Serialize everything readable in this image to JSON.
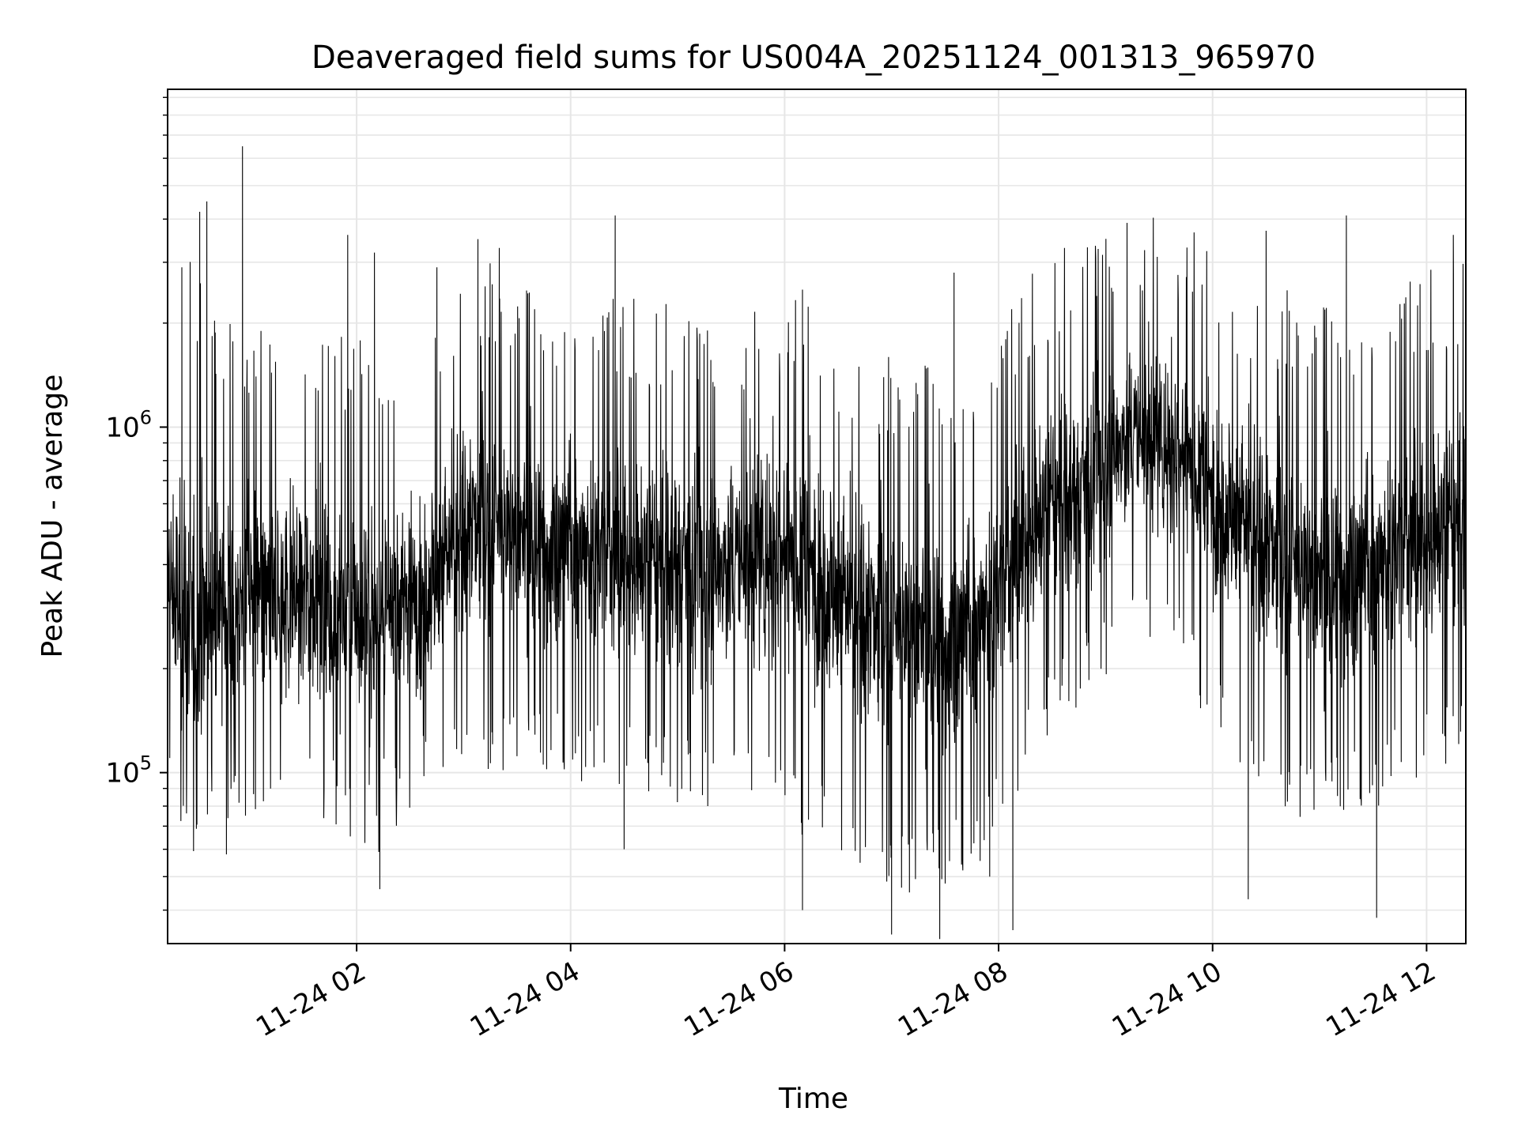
{
  "chart_data": {
    "type": "line",
    "title": "Deaveraged field sums for US004A_20251124_001313_965970",
    "xlabel": "Time",
    "ylabel": "Peak ADU - average",
    "y_scale": "log",
    "ylim": [
      32000,
      9500000
    ],
    "xlim": [
      "2025-11-24 00:14",
      "2025-11-24 12:22"
    ],
    "x_ticks": [
      {
        "label": "11-24 02",
        "time": "2025-11-24 02:00"
      },
      {
        "label": "11-24 04",
        "time": "2025-11-24 04:00"
      },
      {
        "label": "11-24 06",
        "time": "2025-11-24 06:00"
      },
      {
        "label": "11-24 08",
        "time": "2025-11-24 08:00"
      },
      {
        "label": "11-24 10",
        "time": "2025-11-24 10:00"
      },
      {
        "label": "11-24 12",
        "time": "2025-11-24 12:00"
      }
    ],
    "y_ticks": [
      {
        "base": "10",
        "exp": "5",
        "value": 100000
      },
      {
        "base": "10",
        "exp": "6",
        "value": 1000000
      }
    ],
    "grid": true,
    "line_color": "#000000",
    "grid_color": "#e6e6e6",
    "series": [
      {
        "name": "",
        "x": [
          "2025-11-24 00:14",
          "2025-11-24 00:20",
          "2025-11-24 00:30",
          "2025-11-24 00:40",
          "2025-11-24 00:50",
          "2025-11-24 01:00",
          "2025-11-24 01:15",
          "2025-11-24 01:30",
          "2025-11-24 01:45",
          "2025-11-24 02:00",
          "2025-11-24 02:15",
          "2025-11-24 02:30",
          "2025-11-24 02:45",
          "2025-11-24 03:00",
          "2025-11-24 03:15",
          "2025-11-24 03:30",
          "2025-11-24 03:45",
          "2025-11-24 04:00",
          "2025-11-24 04:15",
          "2025-11-24 04:30",
          "2025-11-24 04:45",
          "2025-11-24 05:00",
          "2025-11-24 05:15",
          "2025-11-24 05:30",
          "2025-11-24 05:45",
          "2025-11-24 06:00",
          "2025-11-24 06:15",
          "2025-11-24 06:30",
          "2025-11-24 06:45",
          "2025-11-24 07:00",
          "2025-11-24 07:15",
          "2025-11-24 07:30",
          "2025-11-24 07:45",
          "2025-11-24 08:00",
          "2025-11-24 08:15",
          "2025-11-24 08:30",
          "2025-11-24 08:45",
          "2025-11-24 09:00",
          "2025-11-24 09:15",
          "2025-11-24 09:30",
          "2025-11-24 09:45",
          "2025-11-24 10:00",
          "2025-11-24 10:15",
          "2025-11-24 10:30",
          "2025-11-24 10:45",
          "2025-11-24 11:00",
          "2025-11-24 11:15",
          "2025-11-24 11:30",
          "2025-11-24 11:45",
          "2025-11-24 12:00",
          "2025-11-24 12:15",
          "2025-11-24 12:22"
        ],
        "y": [
          350000,
          300000,
          250000,
          320000,
          280000,
          330000,
          300000,
          340000,
          310000,
          280000,
          260000,
          330000,
          380000,
          500000,
          520000,
          480000,
          450000,
          470000,
          430000,
          420000,
          400000,
          410000,
          380000,
          400000,
          420000,
          450000,
          400000,
          330000,
          280000,
          260000,
          250000,
          240000,
          260000,
          330000,
          480000,
          600000,
          650000,
          800000,
          950000,
          900000,
          850000,
          650000,
          550000,
          450000,
          400000,
          350000,
          380000,
          400000,
          450000,
          480000,
          520000,
          500000
        ],
        "range_low": [
          130000,
          110000,
          90000,
          100000,
          110000,
          120000,
          120000,
          115000,
          110000,
          100000,
          90000,
          120000,
          150000,
          170000,
          160000,
          160000,
          150000,
          150000,
          140000,
          140000,
          130000,
          130000,
          125000,
          125000,
          120000,
          110000,
          100000,
          90000,
          80000,
          75000,
          70000,
          70000,
          80000,
          100000,
          150000,
          200000,
          250000,
          300000,
          350000,
          330000,
          300000,
          200000,
          160000,
          140000,
          120000,
          110000,
          115000,
          120000,
          140000,
          150000,
          160000,
          160000
        ],
        "range_high": [
          1400000,
          1600000,
          1800000,
          1300000,
          1200000,
          1200000,
          1100000,
          1200000,
          1150000,
          1100000,
          1000000,
          1200000,
          1400000,
          1700000,
          1700000,
          1500000,
          1400000,
          1500000,
          1400000,
          1350000,
          1300000,
          1300000,
          1250000,
          1250000,
          1300000,
          1400000,
          1300000,
          1100000,
          1000000,
          900000,
          900000,
          850000,
          900000,
          1100000,
          1500000,
          1800000,
          2000000,
          2300000,
          2500000,
          2400000,
          2300000,
          1800000,
          1600000,
          1500000,
          1400000,
          1300000,
          1350000,
          1400000,
          1500000,
          1600000,
          1700000,
          1700000
        ],
        "spikes": [
          {
            "x": "2025-11-24 00:22",
            "y": 2900000
          },
          {
            "x": "2025-11-24 00:32",
            "y": 4200000
          },
          {
            "x": "2025-11-24 00:36",
            "y": 4500000
          },
          {
            "x": "2025-11-24 00:56",
            "y": 6500000
          },
          {
            "x": "2025-11-24 01:55",
            "y": 3600000
          },
          {
            "x": "2025-11-24 02:10",
            "y": 3200000
          },
          {
            "x": "2025-11-24 02:45",
            "y": 2900000
          },
          {
            "x": "2025-11-24 03:08",
            "y": 3500000
          },
          {
            "x": "2025-11-24 03:20",
            "y": 3300000
          },
          {
            "x": "2025-11-24 04:25",
            "y": 4100000
          },
          {
            "x": "2025-11-24 06:10",
            "y": 2500000
          },
          {
            "x": "2025-11-24 07:35",
            "y": 2800000
          },
          {
            "x": "2025-11-24 09:12",
            "y": 3900000
          },
          {
            "x": "2025-11-24 10:30",
            "y": 3700000
          },
          {
            "x": "2025-11-24 11:15",
            "y": 4100000
          },
          {
            "x": "2025-11-24 12:15",
            "y": 3600000
          },
          {
            "x": "2025-11-24 00:47",
            "y": 58000
          },
          {
            "x": "2025-11-24 02:13",
            "y": 46000
          },
          {
            "x": "2025-11-24 04:30",
            "y": 60000
          },
          {
            "x": "2025-11-24 06:10",
            "y": 40000
          },
          {
            "x": "2025-11-24 07:00",
            "y": 34000
          },
          {
            "x": "2025-11-24 07:10",
            "y": 45000
          },
          {
            "x": "2025-11-24 07:27",
            "y": 33000
          },
          {
            "x": "2025-11-24 07:55",
            "y": 50000
          },
          {
            "x": "2025-11-24 08:08",
            "y": 35000
          },
          {
            "x": "2025-11-24 10:20",
            "y": 43000
          },
          {
            "x": "2025-11-24 11:32",
            "y": 38000
          }
        ]
      }
    ]
  }
}
